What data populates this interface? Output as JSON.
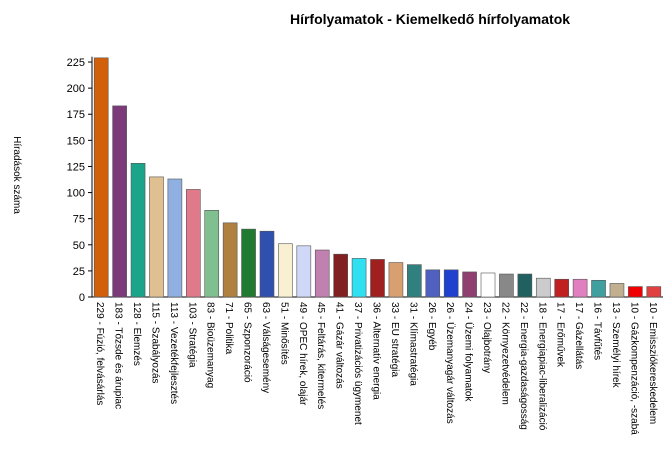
{
  "chart_data": {
    "type": "bar",
    "title": "Hírfolyamatok - Kiemelkedő hírfolyamatok",
    "y_label": "Híradások száma",
    "categories": [
      "229 - Fúzió, felvásárlás",
      "183 - Tőzsde és árupiac",
      "128 - Elemzés",
      "115 - Szabályozás",
      "113 - Vezetékfejlesztés",
      "103 - Stratégia",
      "83 - Bioüzemanyag",
      "71 - Politika",
      "65 - Szponzoráció",
      "63 - Válságesemény",
      "51 - Minősítés",
      "49 - OPEC hírek, olajár",
      "45 - Feltárás, kitermelés",
      "41 - Gázár változás",
      "37 - Privatizációs ügymenet",
      "36 - Alternatív energia",
      "33 - EU stratégia",
      "31 - Klímastratégia",
      "26 - Egyéb",
      "26 - Üzemanyagár változás",
      "24 - Üzemi folyamatok",
      "23 - Olajbotrány",
      "22 - Környezetvédelem",
      "22 - Energia-gazdaságosság",
      "18 - Energiapiac-liberalizáció",
      "17 - Erőművek",
      "17 - Gázellátás",
      "16 - Távfűtés",
      "13 - Személyi hírek",
      "10 - Gázkompenzáció, -szabá",
      "10 - Emissziókereskedelem"
    ],
    "values": [
      229,
      183,
      128,
      115,
      113,
      103,
      83,
      71,
      65,
      63,
      51,
      49,
      45,
      41,
      37,
      36,
      33,
      31,
      26,
      26,
      24,
      23,
      22,
      22,
      18,
      17,
      17,
      16,
      13,
      10,
      10
    ],
    "colors": [
      "#d2600a",
      "#7b3a7a",
      "#1aa58a",
      "#e0c090",
      "#8fb0e0",
      "#e07a8a",
      "#80c090",
      "#b08040",
      "#207a30",
      "#3050b0",
      "#f8f0d0",
      "#d0d8f8",
      "#c080b0",
      "#802020",
      "#30e0f0",
      "#a02020",
      "#d8a070",
      "#308080",
      "#5060c0",
      "#2040d0",
      "#904070",
      "#ffffff",
      "#888888",
      "#206060",
      "#cccccc",
      "#c02020",
      "#e080c0",
      "#40a0a0",
      "#c0b090",
      "#f00000",
      "#e04040"
    ],
    "ylim": [
      0,
      230
    ],
    "yticks": [
      0,
      25,
      50,
      75,
      100,
      125,
      150,
      175,
      200,
      225
    ]
  }
}
